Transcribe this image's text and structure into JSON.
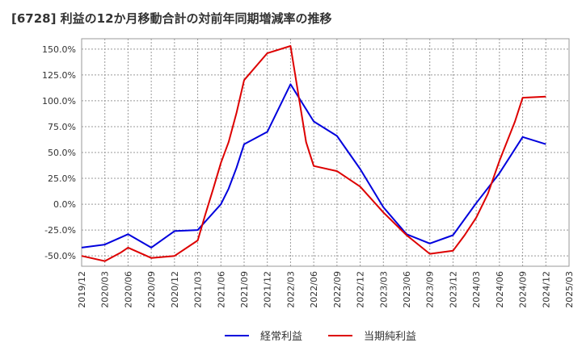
{
  "chart_data": {
    "type": "line",
    "title": "[6728]  利益の12か月移動合計の対前年同期増減率の推移",
    "xlabel": "",
    "ylabel": "",
    "ylim": [
      -60,
      160
    ],
    "yticks": [
      -50,
      -25,
      0,
      25,
      50,
      75,
      100,
      125,
      150
    ],
    "ytick_labels": [
      "-50.0%",
      "-25.0%",
      "0.0%",
      "25.0%",
      "50.0%",
      "75.0%",
      "100.0%",
      "125.0%",
      "150.0%"
    ],
    "x_labels": [
      "2019/12",
      "2020/03",
      "2020/06",
      "2020/09",
      "2020/12",
      "2021/03",
      "2021/06",
      "2021/09",
      "2021/12",
      "2022/03",
      "2022/06",
      "2022/09",
      "2022/12",
      "2023/03",
      "2023/06",
      "2023/09",
      "2023/12",
      "2024/03",
      "2024/06",
      "2024/09",
      "2024/12",
      "2025/03"
    ],
    "grid": true,
    "legend_position": "bottom",
    "series": [
      {
        "name": "経常利益",
        "color": "#0000dd",
        "points": [
          [
            0,
            -42
          ],
          [
            1,
            -39
          ],
          [
            2,
            -29
          ],
          [
            3,
            -42
          ],
          [
            4,
            -26
          ],
          [
            5,
            -25
          ],
          [
            6,
            0
          ],
          [
            6.33,
            15
          ],
          [
            6.67,
            35
          ],
          [
            7,
            58
          ],
          [
            8,
            70
          ],
          [
            9,
            116
          ],
          [
            10,
            80
          ],
          [
            11,
            66
          ],
          [
            12,
            34
          ],
          [
            13,
            -3
          ],
          [
            14,
            -29
          ],
          [
            15,
            -38
          ],
          [
            16,
            -30
          ],
          [
            17,
            1
          ],
          [
            18,
            30
          ],
          [
            19,
            65
          ],
          [
            20,
            58
          ]
        ]
      },
      {
        "name": "当期純利益",
        "color": "#dd0000",
        "points": [
          [
            0,
            -50
          ],
          [
            1,
            -55
          ],
          [
            1.67,
            -47
          ],
          [
            2,
            -42
          ],
          [
            3,
            -52
          ],
          [
            4,
            -50
          ],
          [
            5,
            -35
          ],
          [
            5.33,
            -10
          ],
          [
            5.67,
            15
          ],
          [
            6,
            40
          ],
          [
            6.33,
            60
          ],
          [
            6.67,
            88
          ],
          [
            7,
            120
          ],
          [
            8,
            146
          ],
          [
            9,
            153
          ],
          [
            9.67,
            60
          ],
          [
            10,
            37
          ],
          [
            11,
            32
          ],
          [
            12,
            17
          ],
          [
            13,
            -8
          ],
          [
            14,
            -30
          ],
          [
            15,
            -48
          ],
          [
            16,
            -45
          ],
          [
            16.5,
            -30
          ],
          [
            17,
            -13
          ],
          [
            17.5,
            10
          ],
          [
            18,
            42
          ],
          [
            18.67,
            80
          ],
          [
            19,
            103
          ],
          [
            20,
            104
          ]
        ]
      }
    ]
  }
}
